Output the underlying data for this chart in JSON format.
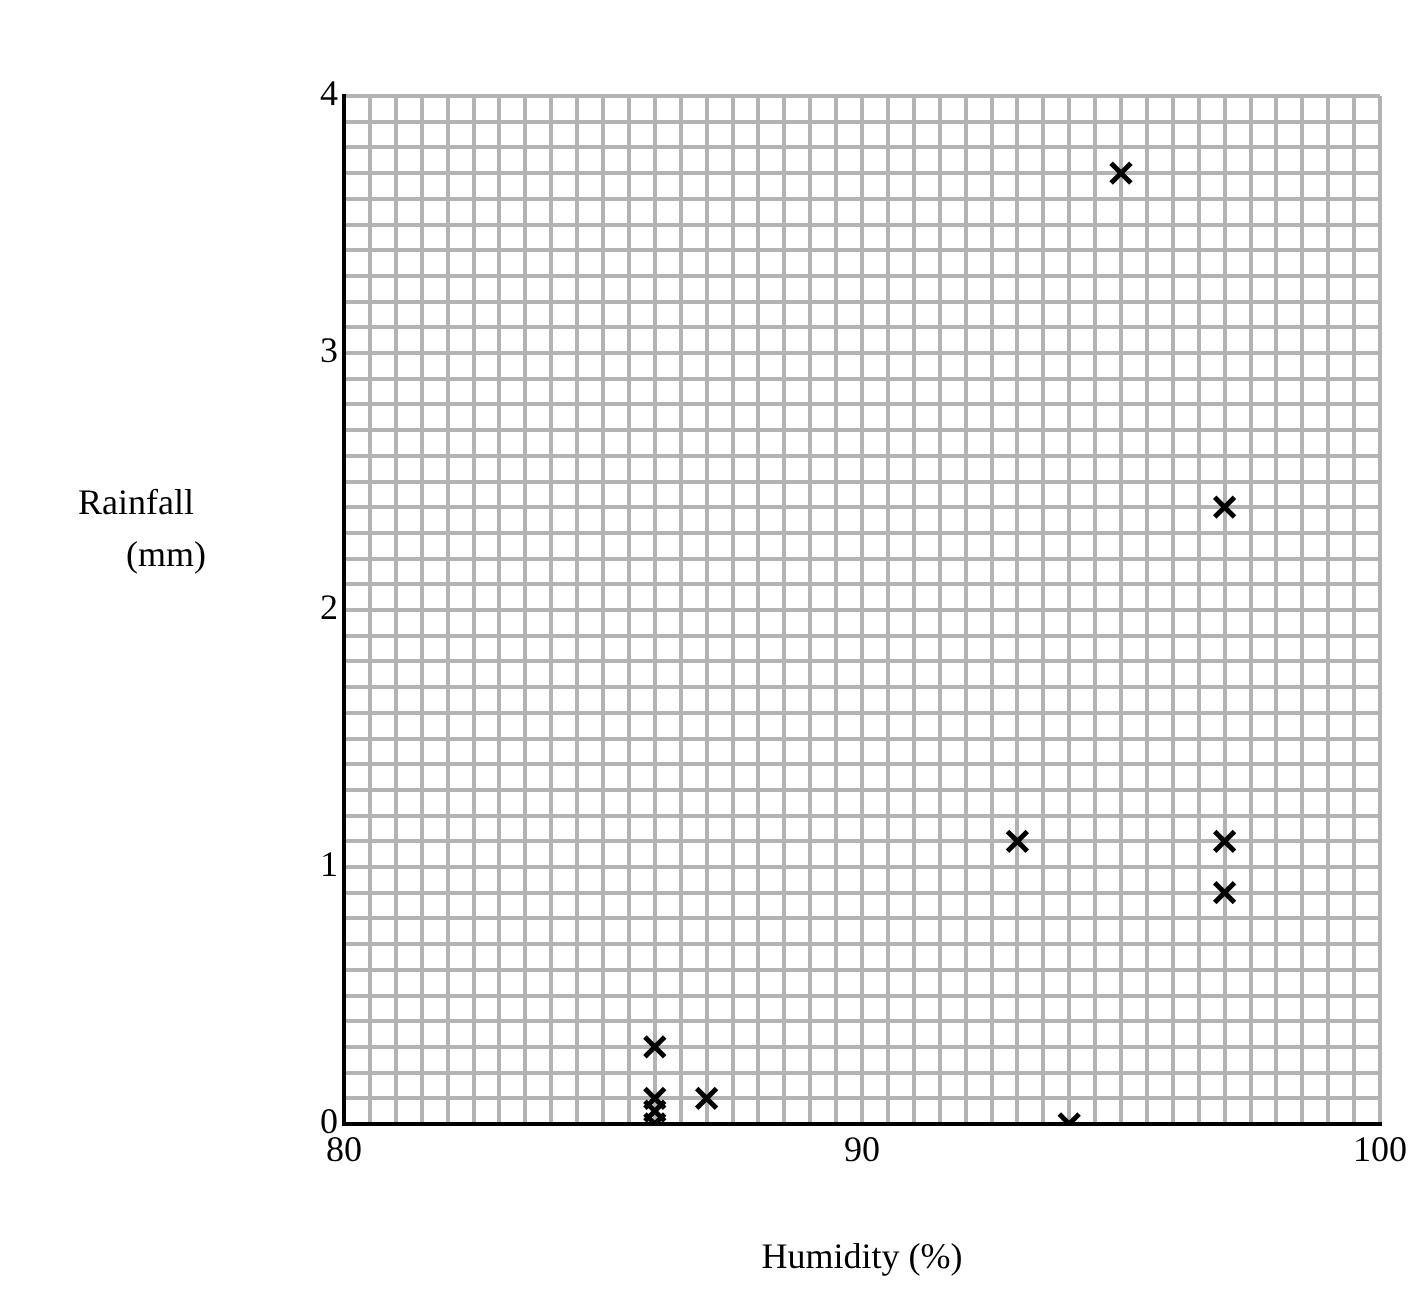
{
  "chart_data": {
    "type": "scatter",
    "xlabel": "Humidity (%)",
    "ylabel": "Rainfall (mm)",
    "x": [
      86,
      86,
      86,
      86,
      87,
      93,
      94,
      95,
      97,
      97,
      97
    ],
    "values": [
      0.3,
      0.1,
      0.05,
      0,
      0.1,
      1.1,
      0,
      3.7,
      2.4,
      1.1,
      0.9
    ],
    "color": "#000000",
    "marker": "cross",
    "grid": true,
    "xlim": [
      80,
      100
    ],
    "ylim": [
      0,
      4
    ],
    "xticks": [
      80,
      {
        "value": 80.5,
        "label": null
      },
      {
        "value": 81,
        "label": null
      },
      {
        "value": 81.5,
        "label": null
      },
      {
        "value": 82,
        "label": null
      },
      {
        "value": 82.5,
        "label": null
      },
      {
        "value": 83,
        "label": null
      },
      {
        "value": 83.5,
        "label": null
      },
      {
        "value": 84,
        "label": null
      },
      {
        "value": 84.5,
        "label": null
      },
      {
        "value": 85,
        "label": null
      },
      {
        "value": 85.5,
        "label": null
      },
      {
        "value": 86,
        "label": null
      },
      {
        "value": 86.5,
        "label": null
      },
      {
        "value": 87,
        "label": null
      },
      {
        "value": 87.5,
        "label": null
      },
      {
        "value": 88,
        "label": null
      },
      {
        "value": 88.5,
        "label": null
      },
      {
        "value": 89,
        "label": null
      },
      {
        "value": 89.5,
        "label": null
      },
      90,
      {
        "value": 90.5,
        "label": null
      },
      {
        "value": 91,
        "label": null
      },
      {
        "value": 91.5,
        "label": null
      },
      {
        "value": 92,
        "label": null
      },
      {
        "value": 92.5,
        "label": null
      },
      {
        "value": 93,
        "label": null
      },
      {
        "value": 93.5,
        "label": null
      },
      {
        "value": 94,
        "label": null
      },
      {
        "value": 94.5,
        "label": null
      },
      {
        "value": 95,
        "label": null
      },
      {
        "value": 95.5,
        "label": null
      },
      {
        "value": 96,
        "label": null
      },
      {
        "value": 96.5,
        "label": null
      },
      {
        "value": 97,
        "label": null
      },
      {
        "value": 97.5,
        "label": null
      },
      {
        "value": 98,
        "label": null
      },
      {
        "value": 98.5,
        "label": null
      },
      {
        "value": 99,
        "label": null
      },
      {
        "value": 99.5,
        "label": null
      },
      100
    ],
    "yticks": [
      0,
      {
        "value": 0.1,
        "label": null
      },
      {
        "value": 0.2,
        "label": null
      },
      {
        "value": 0.3,
        "label": null
      },
      {
        "value": 0.4,
        "label": null
      },
      {
        "value": 0.5,
        "label": null
      },
      {
        "value": 0.6,
        "label": null
      },
      {
        "value": 0.7,
        "label": null
      },
      {
        "value": 0.8,
        "label": null
      },
      {
        "value": 0.9,
        "label": null
      },
      1,
      {
        "value": 1.1,
        "label": null
      },
      {
        "value": 1.2,
        "label": null
      },
      {
        "value": 1.3,
        "label": null
      },
      {
        "value": 1.4,
        "label": null
      },
      {
        "value": 1.5,
        "label": null
      },
      {
        "value": 1.6,
        "label": null
      },
      {
        "value": 1.7,
        "label": null
      },
      {
        "value": 1.8,
        "label": null
      },
      {
        "value": 1.9,
        "label": null
      },
      2,
      {
        "value": 2.1,
        "label": null
      },
      {
        "value": 2.2,
        "label": null
      },
      {
        "value": 2.3,
        "label": null
      },
      {
        "value": 2.4,
        "label": null
      },
      {
        "value": 2.5,
        "label": null
      },
      {
        "value": 2.6,
        "label": null
      },
      {
        "value": 2.7,
        "label": null
      },
      {
        "value": 2.8,
        "label": null
      },
      {
        "value": 2.9,
        "label": null
      },
      3,
      {
        "value": 3.1,
        "label": null
      },
      {
        "value": 3.2,
        "label": null
      },
      {
        "value": 3.3,
        "label": null
      },
      {
        "value": 3.4,
        "label": null
      },
      {
        "value": 3.5,
        "label": null
      },
      {
        "value": 3.6,
        "label": null
      },
      {
        "value": 3.7,
        "label": null
      },
      {
        "value": 3.8,
        "label": null
      },
      {
        "value": 3.9,
        "label": null
      },
      4
    ]
  }
}
